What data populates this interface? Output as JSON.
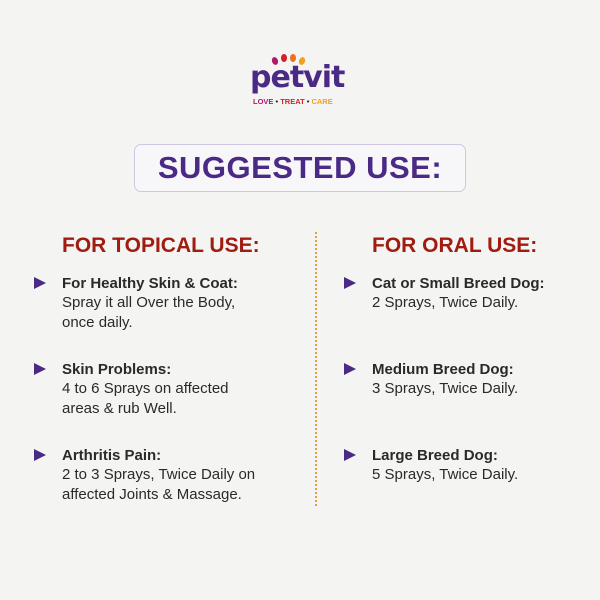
{
  "logo": {
    "brand": "petvit",
    "tagline": [
      "LOVE",
      "TREAT",
      "CARE"
    ],
    "colors": {
      "brand": "#4b2a86",
      "love": "#b0186a",
      "treat": "#d0202a",
      "care": "#f0a020"
    }
  },
  "title": "SUGGESTED USE:",
  "topical": {
    "heading": "FOR TOPICAL USE:",
    "items": [
      {
        "title": "For Healthy Skin & Coat:",
        "lines": [
          "Spray it all Over the Body,",
          "once daily."
        ]
      },
      {
        "title": "Skin Problems:",
        "lines": [
          "4 to 6 Sprays on affected",
          "areas & rub Well."
        ]
      },
      {
        "title": "Arthritis Pain:",
        "lines": [
          "2 to 3 Sprays, Twice Daily on",
          "affected Joints & Massage."
        ]
      }
    ]
  },
  "oral": {
    "heading": "FOR ORAL USE:",
    "items": [
      {
        "title": "Cat or Small Breed Dog:",
        "lines": [
          "2 Sprays, Twice Daily."
        ]
      },
      {
        "title": "Medium Breed Dog:",
        "lines": [
          "3 Sprays, Twice Daily."
        ]
      },
      {
        "title": "Large Breed Dog:",
        "lines": [
          "5 Sprays, Twice Daily."
        ]
      }
    ]
  },
  "colors": {
    "accent": "#4a2a85",
    "heading": "#a01c10",
    "divider": "#e3a13b"
  }
}
